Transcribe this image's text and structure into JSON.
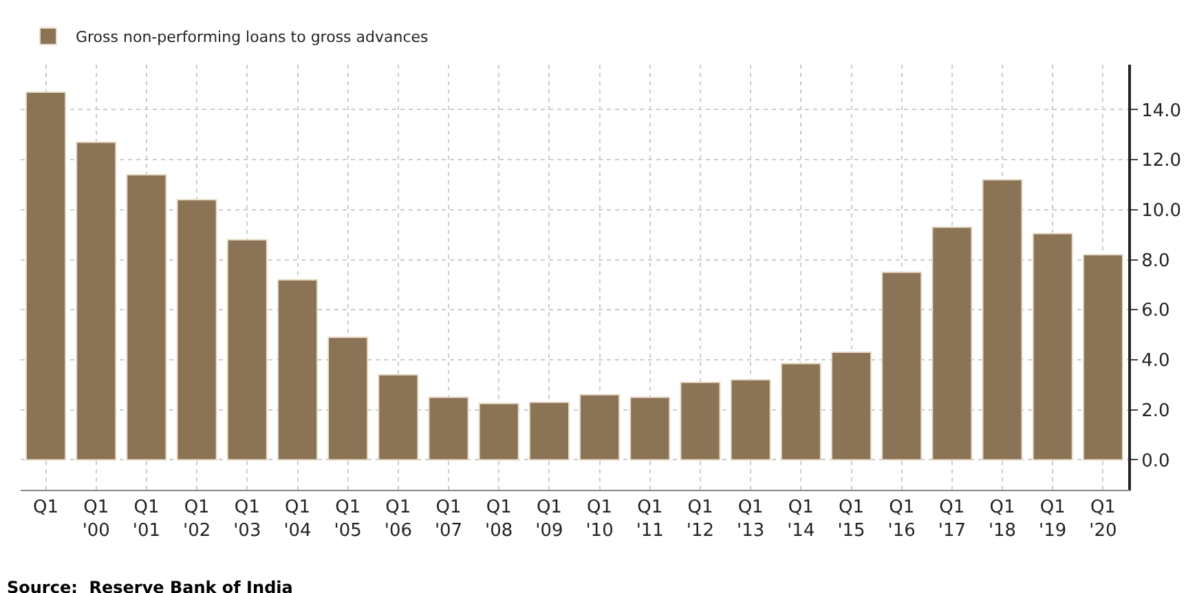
{
  "chart_data": {
    "type": "bar",
    "categories": [
      "Q1",
      "Q1 '00",
      "Q1 '01",
      "Q1 '02",
      "Q1 '03",
      "Q1 '04",
      "Q1 '05",
      "Q1 '06",
      "Q1 '07",
      "Q1 '08",
      "Q1 '09",
      "Q1 '10",
      "Q1 '11",
      "Q1 '12",
      "Q1 '13",
      "Q1 '14",
      "Q1 '15",
      "Q1 '16",
      "Q1 '17",
      "Q1 '18",
      "Q1 '19",
      "Q1 '20"
    ],
    "series": [
      {
        "name": "Gross non-performing loans to gross advances",
        "color": "#8b7355",
        "values": [
          14.7,
          12.7,
          11.4,
          10.4,
          8.8,
          7.2,
          4.9,
          3.4,
          2.5,
          2.25,
          2.3,
          2.6,
          2.5,
          3.1,
          3.2,
          3.85,
          4.3,
          7.5,
          9.3,
          11.2,
          9.05,
          8.2
        ]
      }
    ],
    "ylim": [
      -1.2,
      15.8
    ],
    "yticks": [
      {
        "value": 0,
        "label": "0.0"
      },
      {
        "value": 2,
        "label": "2.0"
      },
      {
        "value": 4,
        "label": "4.0"
      },
      {
        "value": 6,
        "label": "6.0"
      },
      {
        "value": 8,
        "label": "8.0"
      },
      {
        "value": 10,
        "label": "10.0"
      },
      {
        "value": 12,
        "label": "12.0"
      },
      {
        "value": 14,
        "label": "14.0"
      }
    ],
    "grid": true,
    "legend": "top left",
    "annotations": [
      "Source:  Reserve Bank of India"
    ]
  }
}
